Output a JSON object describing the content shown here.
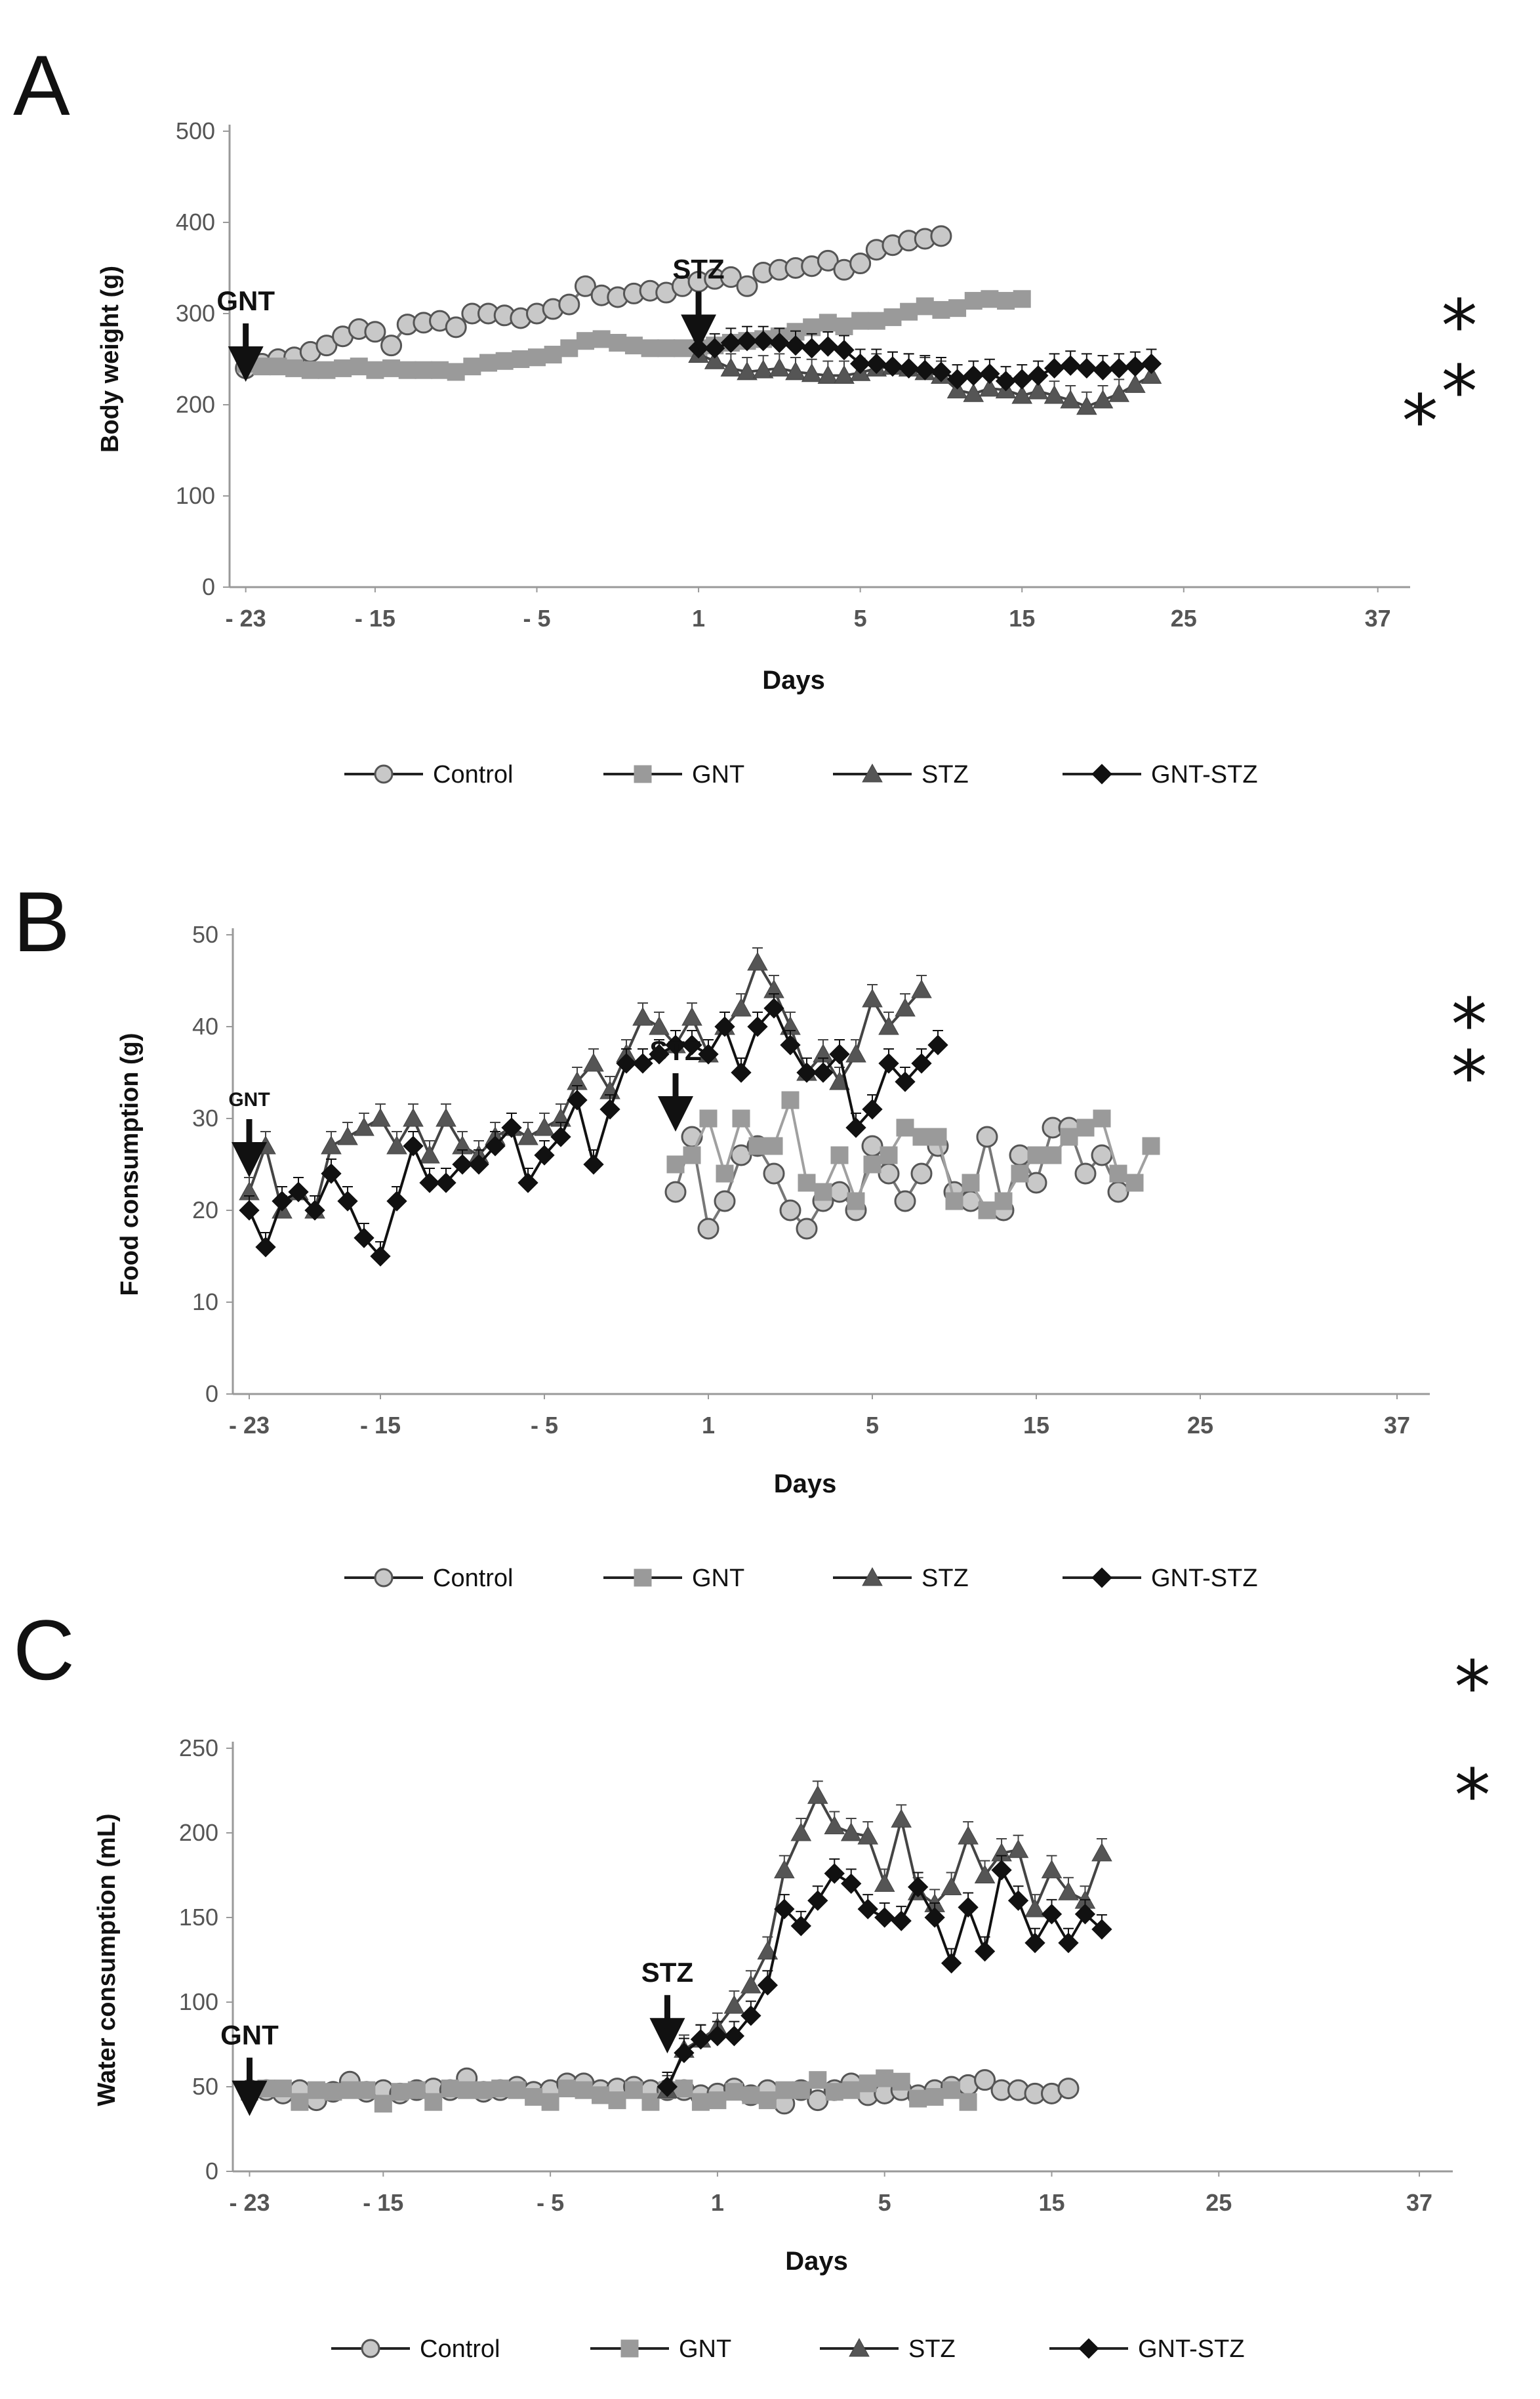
{
  "figure": {
    "legend": [
      "Control",
      "GNT",
      "STZ",
      "GNT-STZ"
    ],
    "series_style": {
      "Control": {
        "marker": "circle",
        "fill": "#c8c8c8",
        "stroke": "#555555",
        "line": "#777777"
      },
      "GNT": {
        "marker": "square",
        "fill": "#9a9a9a",
        "stroke": "#9a9a9a",
        "line": "#a0a0a0"
      },
      "STZ": {
        "marker": "triangle",
        "fill": "#555555",
        "stroke": "#444444",
        "line": "#444444"
      },
      "GNT-STZ": {
        "marker": "diamond",
        "fill": "#111111",
        "stroke": "#111111",
        "line": "#111111"
      }
    }
  },
  "chart_data": [
    {
      "panel": "A",
      "type": "line",
      "title": "",
      "xlabel": "Days",
      "ylabel": "Body weight (g)",
      "ylim": [
        0,
        500
      ],
      "yticks": [
        "0",
        "100",
        "200",
        "300",
        "400",
        "500"
      ],
      "ytick_values": [
        0,
        100,
        200,
        300,
        400,
        500
      ],
      "xticks": [
        "- 23",
        "- 15",
        "- 5",
        "1",
        "5",
        "15",
        "25",
        "37"
      ],
      "xtick_positions": [
        0,
        8,
        18,
        28,
        38,
        48,
        58,
        70
      ],
      "x_range": [
        -1,
        72
      ],
      "annotations": [
        {
          "text": "GNT",
          "x": 0,
          "y": 300
        },
        {
          "text": "STZ",
          "x": 28,
          "y": 335
        }
      ],
      "significance": [
        "*",
        "*",
        "*"
      ],
      "series": [
        {
          "name": "Control",
          "start": 0,
          "values": [
            240,
            245,
            250,
            252,
            258,
            265,
            275,
            283,
            280,
            265,
            288,
            290,
            292,
            285,
            300,
            300,
            298,
            295,
            300,
            305,
            310,
            330,
            320,
            318,
            322,
            325,
            323,
            330,
            335,
            338,
            340,
            330,
            345,
            348,
            350,
            352,
            358,
            348,
            355,
            370,
            375,
            380,
            382,
            385
          ]
        },
        {
          "name": "GNT",
          "start": 0,
          "values": [
            245,
            242,
            242,
            240,
            238,
            238,
            240,
            242,
            238,
            240,
            238,
            238,
            238,
            236,
            242,
            246,
            248,
            250,
            252,
            255,
            262,
            270,
            272,
            268,
            265,
            262,
            262,
            262,
            262,
            265,
            268,
            270,
            272,
            275,
            280,
            285,
            290,
            286,
            292,
            292,
            296,
            302,
            308,
            304,
            306,
            314,
            316,
            314,
            316
          ]
        },
        {
          "name": "STZ",
          "start": 28,
          "values": [
            255,
            248,
            240,
            236,
            238,
            240,
            236,
            234,
            232,
            232,
            235,
            240,
            242,
            240,
            236,
            232,
            216,
            212,
            218,
            216,
            210,
            215,
            210,
            205,
            198,
            205,
            212,
            222,
            232
          ]
        },
        {
          "name": "GNT-STZ",
          "start": 28,
          "values": [
            262,
            262,
            268,
            270,
            270,
            268,
            265,
            262,
            264,
            260,
            245,
            245,
            242,
            240,
            238,
            236,
            228,
            232,
            234,
            226,
            228,
            232,
            240,
            243,
            240,
            238,
            240,
            242,
            245
          ]
        }
      ]
    },
    {
      "panel": "B",
      "type": "line",
      "title": "",
      "xlabel": "Days",
      "ylabel": "Food consumption (g)",
      "ylim": [
        0,
        50
      ],
      "yticks": [
        "0",
        "10",
        "20",
        "30",
        "40",
        "50"
      ],
      "ytick_values": [
        0,
        10,
        20,
        30,
        40,
        50
      ],
      "xticks": [
        "- 23",
        "- 15",
        "- 5",
        "1",
        "5",
        "15",
        "25",
        "37"
      ],
      "xtick_positions": [
        0,
        8,
        18,
        28,
        38,
        48,
        58,
        70
      ],
      "x_range": [
        -1,
        72
      ],
      "annotations": [
        {
          "text": "GNT",
          "x": 0,
          "y": 31
        },
        {
          "text": "STZ",
          "x": 26,
          "y": 36
        }
      ],
      "significance": [
        "*",
        "*"
      ],
      "series": [
        {
          "name": "Control",
          "start": 26,
          "values": [
            22,
            28,
            18,
            21,
            26,
            27,
            24,
            20,
            18,
            21,
            22,
            20,
            27,
            24,
            21,
            24,
            27,
            22,
            21,
            28,
            20,
            26,
            23,
            29,
            29,
            24,
            26,
            22
          ]
        },
        {
          "name": "GNT",
          "start": 26,
          "values": [
            25,
            26,
            30,
            24,
            30,
            27,
            27,
            32,
            23,
            22,
            26,
            21,
            25,
            26,
            29,
            28,
            28,
            21,
            23,
            20,
            21,
            24,
            26,
            26,
            28,
            29,
            30,
            24,
            23,
            27
          ]
        },
        {
          "name": "STZ",
          "start": 0,
          "values": [
            22,
            27,
            20,
            22,
            20,
            27,
            28,
            29,
            30,
            27,
            30,
            26,
            30,
            27,
            26,
            28,
            29,
            28,
            29,
            30,
            34,
            36,
            33,
            37,
            41,
            40,
            38,
            41,
            37,
            40,
            42,
            47,
            44,
            40,
            35,
            37,
            34,
            37,
            43,
            40,
            42,
            44
          ]
        },
        {
          "name": "GNT-STZ",
          "start": 0,
          "values": [
            20,
            16,
            21,
            22,
            20,
            24,
            21,
            17,
            15,
            21,
            27,
            23,
            23,
            25,
            25,
            27,
            29,
            23,
            26,
            28,
            32,
            25,
            31,
            36,
            36,
            37,
            38,
            38,
            37,
            40,
            35,
            40,
            42,
            38,
            35,
            35,
            37,
            29,
            31,
            36,
            34,
            36,
            38
          ]
        }
      ]
    },
    {
      "panel": "C",
      "type": "line",
      "title": "",
      "xlabel": "Days",
      "ylabel": "Water consumption (mL)",
      "ylim": [
        0,
        250
      ],
      "yticks": [
        "0",
        "50",
        "100",
        "150",
        "200",
        "250"
      ],
      "ytick_values": [
        0,
        50,
        100,
        150,
        200,
        250
      ],
      "xticks": [
        "- 23",
        "- 15",
        "- 5",
        "1",
        "5",
        "15",
        "25",
        "37"
      ],
      "xtick_positions": [
        0,
        8,
        18,
        28,
        38,
        48,
        58,
        70
      ],
      "x_range": [
        -1,
        72
      ],
      "annotations": [
        {
          "text": "GNT",
          "x": 0,
          "y": 73
        },
        {
          "text": "STZ",
          "x": 25,
          "y": 110
        }
      ],
      "significance": [
        "*",
        "*"
      ],
      "series": [
        {
          "name": "Control",
          "start": 0,
          "values": [
            48,
            48,
            46,
            48,
            42,
            47,
            53,
            47,
            48,
            46,
            48,
            49,
            48,
            55,
            47,
            48,
            50,
            47,
            48,
            52,
            52,
            48,
            49,
            50,
            48,
            48,
            48,
            45,
            46,
            49,
            45,
            48,
            40,
            48,
            42,
            48,
            52,
            45,
            46,
            48,
            45,
            48,
            50,
            51,
            54,
            48,
            48,
            46,
            46,
            49
          ]
        },
        {
          "name": "GNT",
          "start": 0,
          "values": [
            47,
            49,
            49,
            41,
            48,
            47,
            48,
            48,
            40,
            47,
            48,
            41,
            49,
            48,
            48,
            49,
            48,
            44,
            41,
            49,
            48,
            45,
            42,
            48,
            41,
            48,
            49,
            41,
            42,
            47,
            45,
            42,
            48,
            48,
            54,
            47,
            48,
            52,
            55,
            53,
            43,
            44,
            48,
            41
          ]
        },
        {
          "name": "STZ",
          "start": 25,
          "values": [
            48,
            72,
            78,
            85,
            98,
            110,
            130,
            178,
            200,
            222,
            204,
            200,
            198,
            170,
            208,
            165,
            158,
            168,
            198,
            175,
            188,
            190,
            155,
            178,
            165,
            160,
            188
          ]
        },
        {
          "name": "GNT-STZ",
          "start": 25,
          "values": [
            50,
            70,
            78,
            80,
            80,
            92,
            110,
            155,
            145,
            160,
            176,
            170,
            155,
            150,
            148,
            168,
            150,
            123,
            156,
            130,
            178,
            160,
            135,
            152,
            135,
            152,
            143
          ]
        }
      ]
    }
  ]
}
